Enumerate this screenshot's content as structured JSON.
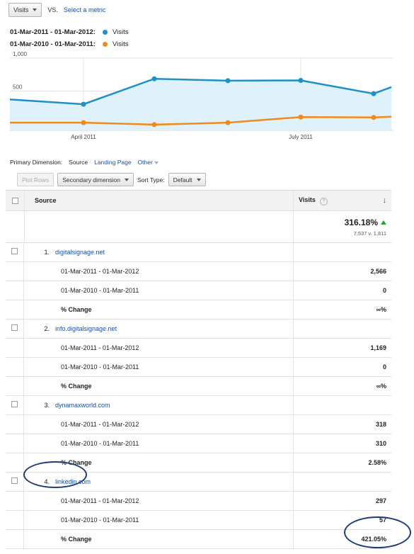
{
  "controls": {
    "metric_label": "Visits",
    "vs_label": "VS.",
    "select_metric": "Select a metric"
  },
  "legend": [
    {
      "range": "01-Mar-2011 - 01-Mar-2012:",
      "series": "Visits",
      "color": "#1e90c8"
    },
    {
      "range": "01-Mar-2010 - 01-Mar-2011:",
      "series": "Visits",
      "color": "#f08a1c"
    }
  ],
  "chart_data": {
    "type": "line",
    "y_ticks": [
      "1,000",
      "500"
    ],
    "x_labels": [
      "April 2011",
      "July 2011"
    ],
    "series": [
      {
        "name": "Visits",
        "range": "01-Mar-2011 - 01-Mar-2012",
        "color": "#1e90c8",
        "values": [
          372,
          300,
          686,
          657,
          661,
          460,
          560
        ]
      },
      {
        "name": "Visits",
        "range": "01-Mar-2010 - 01-Mar-2011",
        "color": "#f08a1c",
        "values": [
          20,
          20,
          -10,
          20,
          105,
          100,
          110
        ]
      }
    ],
    "ylim": [
      0,
      1000
    ],
    "grid": true
  },
  "dimension": {
    "label": "Primary Dimension:",
    "source": "Source",
    "landing": "Landing Page",
    "other": "Other"
  },
  "toolbar": {
    "plot_rows": "Plot Rows",
    "secondary": "Secondary dimension",
    "sort_type": "Sort Type:",
    "sort_default": "Default"
  },
  "table": {
    "col_source": "Source",
    "col_visits": "Visits",
    "help": "?",
    "total_pct": "316.18%",
    "total_sub": "7,537 v. 1,811",
    "groups": [
      {
        "num": "1.",
        "source": "digitalsignage.net",
        "rows": [
          {
            "label": "01-Mar-2011 - 01-Mar-2012",
            "value": "2,566"
          },
          {
            "label": "01-Mar-2010 - 01-Mar-2011",
            "value": "0"
          },
          {
            "label": "% Change",
            "value": "∞%"
          }
        ]
      },
      {
        "num": "2.",
        "source": "info.digitalsignage.net",
        "rows": [
          {
            "label": "01-Mar-2011 - 01-Mar-2012",
            "value": "1,169"
          },
          {
            "label": "01-Mar-2010 - 01-Mar-2011",
            "value": "0"
          },
          {
            "label": "% Change",
            "value": "∞%"
          }
        ]
      },
      {
        "num": "3.",
        "source": "dynamaxworld.com",
        "rows": [
          {
            "label": "01-Mar-2011 - 01-Mar-2012",
            "value": "318"
          },
          {
            "label": "01-Mar-2010 - 01-Mar-2011",
            "value": "310"
          },
          {
            "label": "% Change",
            "value": "2.58%"
          }
        ]
      },
      {
        "num": "4.",
        "source": "linkedin.com",
        "rows": [
          {
            "label": "01-Mar-2011 - 01-Mar-2012",
            "value": "297"
          },
          {
            "label": "01-Mar-2010 - 01-Mar-2011",
            "value": "57"
          },
          {
            "label": "% Change",
            "value": "421.05%"
          }
        ]
      }
    ]
  }
}
